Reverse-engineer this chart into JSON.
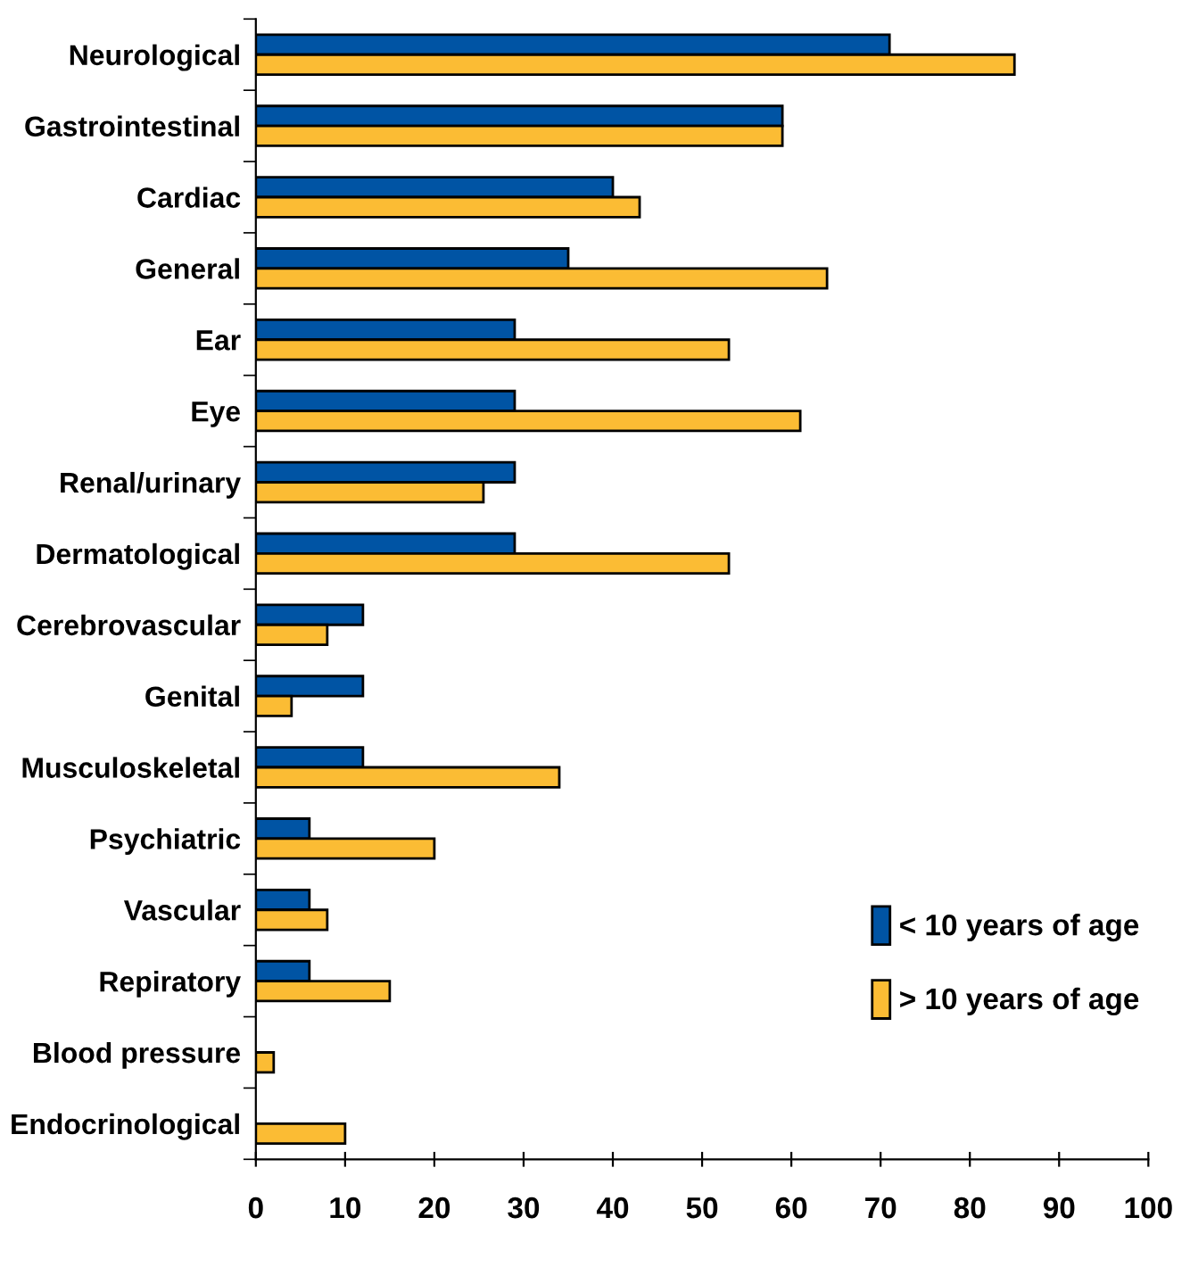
{
  "chart_data": {
    "type": "bar",
    "orientation": "horizontal",
    "categories": [
      "Neurological",
      "Gastrointestinal",
      "Cardiac",
      "General",
      "Ear",
      "Eye",
      "Renal/urinary",
      "Dermatological",
      "Cerebrovascular",
      "Genital",
      "Musculoskeletal",
      "Psychiatric",
      "Vascular",
      "Repiratory",
      "Blood pressure",
      "Endocrinological"
    ],
    "series": [
      {
        "name": "< 10 years of age",
        "color": "#0054a4",
        "values": [
          71,
          59,
          40,
          35,
          29,
          29,
          29,
          29,
          12,
          12,
          12,
          6,
          6,
          6,
          null,
          null
        ]
      },
      {
        "name": "> 10 years of age",
        "color": "#fbbc34",
        "values": [
          85,
          59,
          43,
          64,
          53,
          61,
          25.5,
          53,
          8,
          4,
          34,
          20,
          8,
          15,
          2,
          10
        ]
      }
    ],
    "xlim": [
      0,
      100
    ],
    "xticks": [
      0,
      10,
      20,
      30,
      40,
      50,
      60,
      70,
      80,
      90,
      100
    ],
    "grid": false,
    "legend": "bottom right"
  }
}
